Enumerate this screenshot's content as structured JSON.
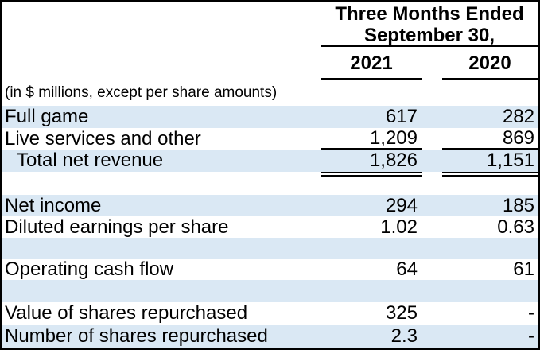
{
  "table": {
    "header": {
      "period_line1": "Three Months Ended",
      "period_line2": "September 30,",
      "col_2021": "2021",
      "col_2020": "2020"
    },
    "note": "(in $ millions, except per share amounts)",
    "rows": {
      "full_game": {
        "label": "Full game",
        "y2021": "617",
        "y2020": "282"
      },
      "live_services": {
        "label": "Live services and other",
        "y2021": "1,209",
        "y2020": "869"
      },
      "total_net_revenue": {
        "label": "Total net revenue",
        "y2021": "1,826",
        "y2020": "1,151"
      },
      "net_income": {
        "label": "Net income",
        "y2021": "294",
        "y2020": "185"
      },
      "diluted_eps": {
        "label": "Diluted earnings per share",
        "y2021": "1.02",
        "y2020": "0.63"
      },
      "operating_cash_flow": {
        "label": "Operating cash flow",
        "y2021": "64",
        "y2020": "61"
      },
      "value_shares_repurchased": {
        "label": "Value of shares repurchased",
        "y2021": "325",
        "y2020": "-"
      },
      "number_shares_repurchased": {
        "label": "Number of shares repurchased",
        "y2021": "2.3",
        "y2020": "-"
      }
    },
    "colors": {
      "stripe_blue": "#dae8f4",
      "border": "#000000",
      "text": "#000000"
    }
  },
  "chart_data": {
    "type": "table",
    "title": "Three Months Ended September 30,",
    "note": "(in $ millions, except per share amounts)",
    "columns": [
      "",
      "2021",
      "2020"
    ],
    "rows": [
      [
        "Full game",
        "617",
        "282"
      ],
      [
        "Live services and other",
        "1,209",
        "869"
      ],
      [
        "Total net revenue",
        "1,826",
        "1,151"
      ],
      [
        "Net income",
        "294",
        "185"
      ],
      [
        "Diluted earnings per share",
        "1.02",
        "0.63"
      ],
      [
        "Operating cash flow",
        "64",
        "61"
      ],
      [
        "Value of shares repurchased",
        "325",
        "-"
      ],
      [
        "Number of shares repurchased",
        "2.3",
        "-"
      ]
    ],
    "layout_hints": {
      "striped_rows": true,
      "stripe_color": "#dae8f4",
      "single_rule_under": "Live services and other",
      "double_rule_under": "Total net revenue",
      "values_right_aligned": true
    }
  }
}
